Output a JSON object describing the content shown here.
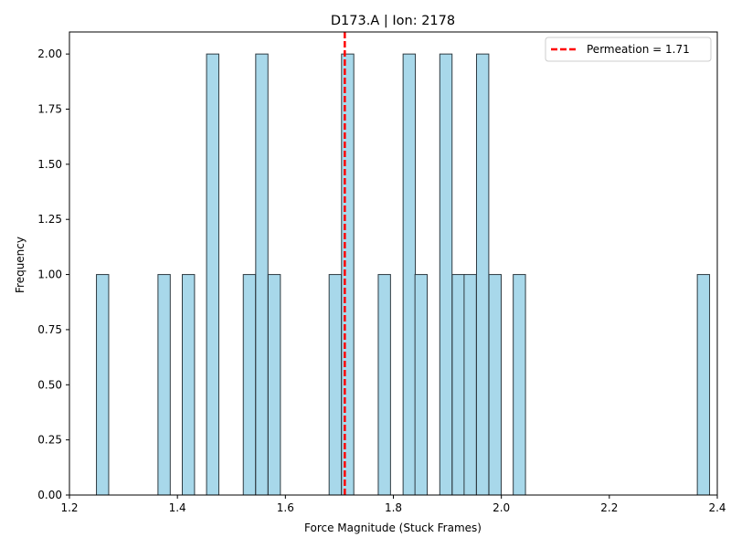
{
  "chart_data": {
    "type": "bar",
    "title": "D173.A | Ion: 2178",
    "xlabel": "Force Magnitude (Stuck Frames)",
    "ylabel": "Frequency",
    "xlim": [
      1.2,
      2.4
    ],
    "ylim": [
      0.0,
      2.1
    ],
    "x_ticks": [
      "1.2",
      "1.4",
      "1.6",
      "1.8",
      "2.0",
      "2.2",
      "2.4"
    ],
    "y_ticks": [
      "0.00",
      "0.25",
      "0.50",
      "0.75",
      "1.00",
      "1.25",
      "1.50",
      "1.75",
      "2.00"
    ],
    "bin_width": 0.0227,
    "bins": [
      {
        "x_start": 1.25,
        "count": 1
      },
      {
        "x_start": 1.364,
        "count": 1
      },
      {
        "x_start": 1.409,
        "count": 1
      },
      {
        "x_start": 1.454,
        "count": 2
      },
      {
        "x_start": 1.522,
        "count": 1
      },
      {
        "x_start": 1.545,
        "count": 2
      },
      {
        "x_start": 1.568,
        "count": 1
      },
      {
        "x_start": 1.681,
        "count": 1
      },
      {
        "x_start": 1.704,
        "count": 2
      },
      {
        "x_start": 1.772,
        "count": 1
      },
      {
        "x_start": 1.818,
        "count": 2
      },
      {
        "x_start": 1.84,
        "count": 1
      },
      {
        "x_start": 1.886,
        "count": 2
      },
      {
        "x_start": 1.909,
        "count": 1
      },
      {
        "x_start": 1.931,
        "count": 1
      },
      {
        "x_start": 1.954,
        "count": 2
      },
      {
        "x_start": 1.977,
        "count": 1
      },
      {
        "x_start": 2.022,
        "count": 1
      },
      {
        "x_start": 2.363,
        "count": 1
      }
    ],
    "vline": {
      "x": 1.71,
      "label": "Permeation = 1.71",
      "color": "#ff0000",
      "style": "dashed"
    },
    "bar_color": "#a8d8ea",
    "bar_edge_color": "#2f3b42",
    "grid": false,
    "legend_position": "top-right"
  }
}
